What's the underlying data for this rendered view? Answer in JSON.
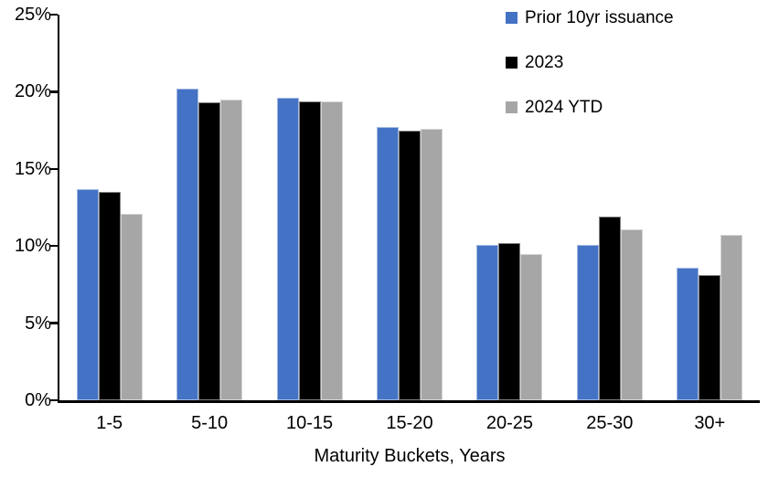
{
  "chart": {
    "background_color": "#ffffff",
    "axis_color": "#000000",
    "text_color": "#000000"
  },
  "chart_data": {
    "type": "bar",
    "title": "",
    "xlabel": "Maturity Buckets, Years",
    "ylabel": "",
    "categories": [
      "1-5",
      "5-10",
      "10-15",
      "15-20",
      "20-25",
      "25-30",
      "30+"
    ],
    "series": [
      {
        "name": "Prior 10yr issuance",
        "color": "#4472C4",
        "values": [
          13.7,
          20.2,
          19.6,
          17.7,
          10.1,
          10.1,
          8.6
        ]
      },
      {
        "name": "2023",
        "color": "#000000",
        "values": [
          13.5,
          19.3,
          19.4,
          17.5,
          10.2,
          11.9,
          8.1
        ]
      },
      {
        "name": "2024 YTD",
        "color": "#A6A6A6",
        "values": [
          12.1,
          19.5,
          19.4,
          17.6,
          9.5,
          11.1,
          10.7
        ]
      }
    ],
    "ylim": [
      0,
      25
    ],
    "ytick_step": 5,
    "ytick_labels": [
      "0%",
      "5%",
      "10%",
      "15%",
      "20%",
      "25%"
    ],
    "grid": false,
    "legend_position": "top-right"
  }
}
